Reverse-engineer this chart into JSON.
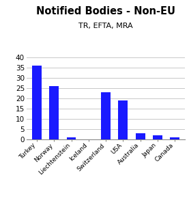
{
  "title": "Notified Bodies - Non-EU",
  "subtitle": "TR, EFTA, MRA",
  "categories": [
    "Turkey",
    "Norway",
    "Liechtenstein",
    "Iceland",
    "Switzerland",
    "USA",
    "Australia",
    "Japan",
    "Canada"
  ],
  "values": [
    36,
    26,
    1,
    0,
    23,
    19,
    3,
    2,
    1
  ],
  "bar_color": "#1a1aff",
  "ylim": [
    0,
    40
  ],
  "yticks": [
    0,
    5,
    10,
    15,
    20,
    25,
    30,
    35,
    40
  ],
  "title_fontsize": 10.5,
  "subtitle_fontsize": 8,
  "tick_label_fontsize": 6.5,
  "ytick_fontsize": 7.5,
  "background_color": "#ffffff",
  "grid_color": "#c8c8c8",
  "bar_width": 0.55
}
